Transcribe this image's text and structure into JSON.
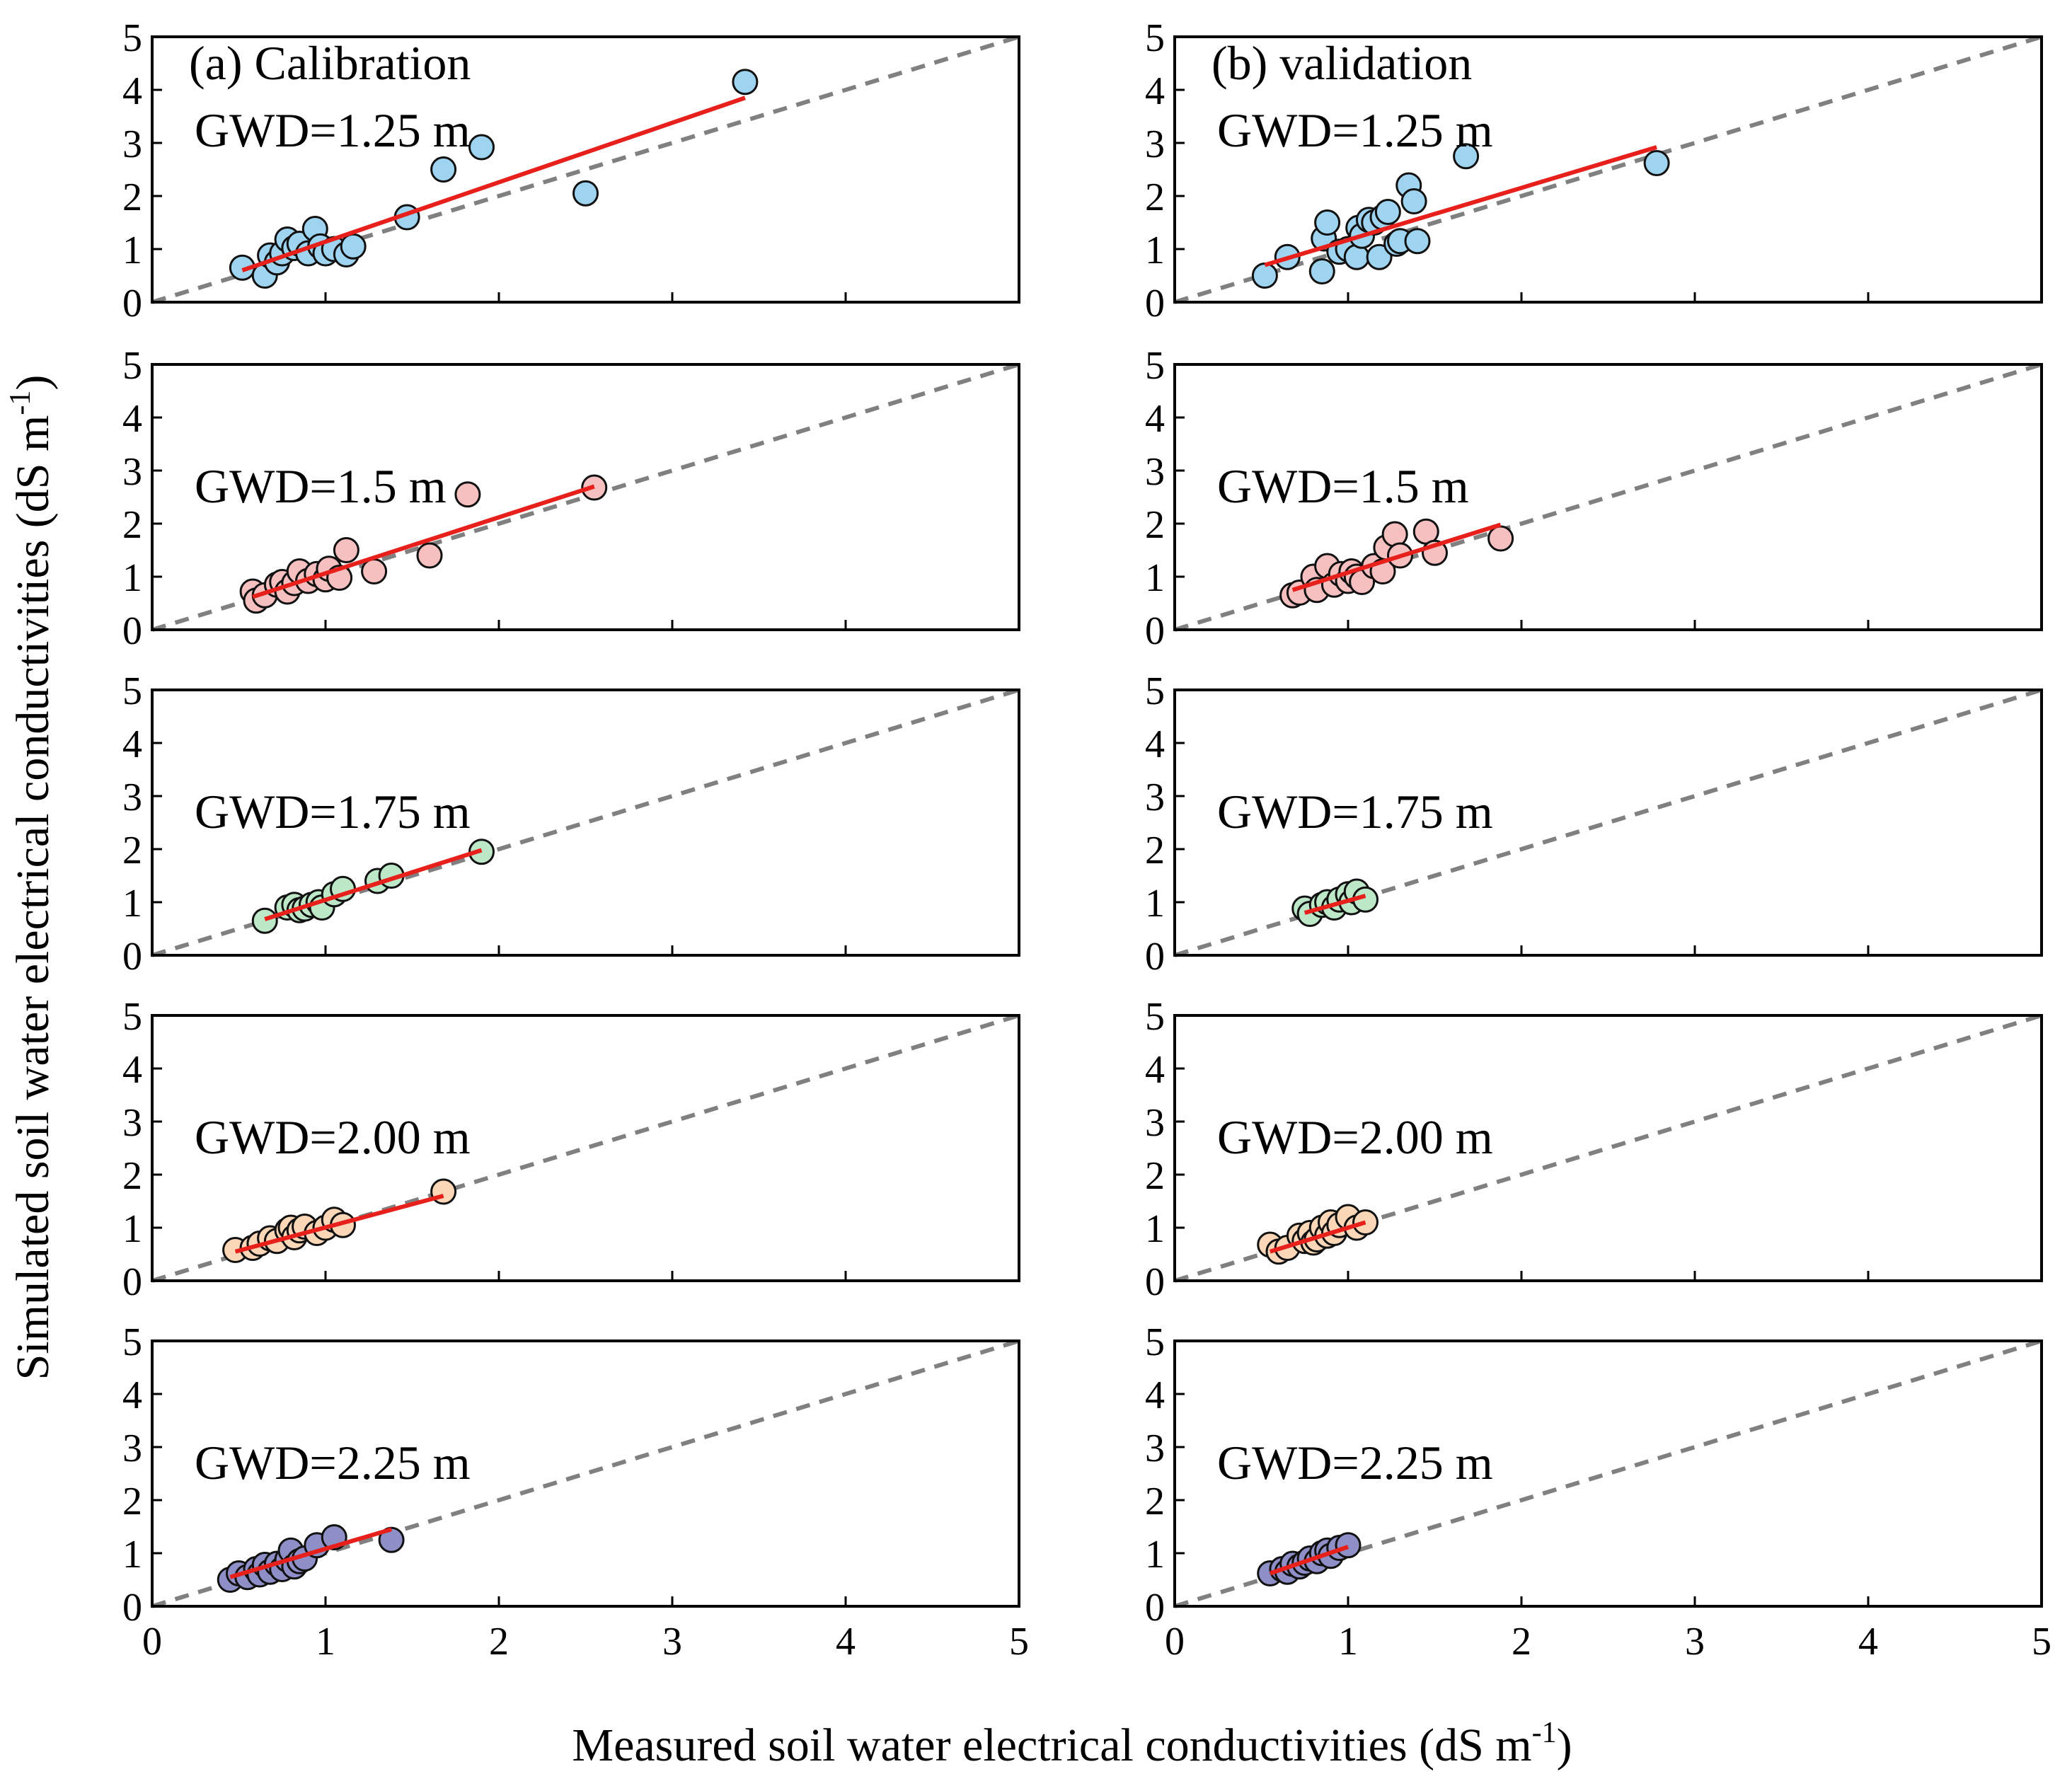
{
  "figure": {
    "ylabel": "Simulated soil water electrical conductivities (dS m",
    "ylabel_sup": "-1",
    "ylabel_end": ")",
    "xlabel": "Measured soil water electrical conductivities (dS m",
    "xlabel_sup": "-1",
    "xlabel_end": ")",
    "ticks": [
      "0",
      "1",
      "2",
      "3",
      "4",
      "5"
    ],
    "colors": {
      "gwd_1_25": "#9fd4f0",
      "gwd_1_5": "#f7c0c0",
      "gwd_1_75": "#bde8c8",
      "gwd_2_00": "#fbd7b8",
      "gwd_2_25": "#8f8fc8",
      "fit_line": "#e8201c",
      "one_to_one": "#808080"
    }
  },
  "columns": [
    {
      "title": "(a) Calibration"
    },
    {
      "title": "(b) validation"
    }
  ],
  "chart_data": [
    {
      "type": "scatter",
      "column": "(a) Calibration",
      "label": "GWD=1.25 m",
      "color_key": "gwd_1_25",
      "xlim": [
        0,
        5
      ],
      "ylim": [
        0,
        5
      ],
      "x": [
        0.52,
        0.65,
        0.68,
        0.72,
        0.75,
        0.78,
        0.82,
        0.85,
        0.9,
        0.94,
        0.97,
        1.0,
        1.05,
        1.12,
        1.16,
        1.47,
        1.68,
        1.9,
        2.5,
        3.42
      ],
      "y": [
        0.65,
        0.5,
        0.88,
        0.75,
        0.92,
        1.18,
        1.02,
        1.1,
        0.92,
        1.38,
        1.05,
        0.92,
        1.0,
        0.9,
        1.05,
        1.6,
        2.5,
        2.92,
        2.05,
        4.15
      ],
      "fit": {
        "x": [
          0.52,
          3.42
        ],
        "y": [
          0.6,
          3.85
        ]
      }
    },
    {
      "type": "scatter",
      "column": "(b) validation",
      "label": "GWD=1.25 m",
      "color_key": "gwd_1_25",
      "xlim": [
        0,
        5
      ],
      "ylim": [
        0,
        5
      ],
      "x": [
        0.52,
        0.65,
        0.85,
        0.86,
        0.88,
        0.95,
        1.0,
        1.05,
        1.06,
        1.08,
        1.12,
        1.15,
        1.18,
        1.2,
        1.23,
        1.28,
        1.3,
        1.35,
        1.38,
        1.4,
        1.68,
        2.78
      ],
      "y": [
        0.5,
        0.85,
        0.58,
        1.2,
        1.5,
        0.95,
        1.0,
        0.85,
        1.4,
        1.25,
        1.55,
        1.5,
        0.85,
        1.6,
        1.7,
        1.1,
        1.15,
        2.2,
        1.9,
        1.15,
        2.75,
        2.62
      ],
      "fit": {
        "x": [
          0.52,
          2.78
        ],
        "y": [
          0.7,
          2.92
        ]
      }
    },
    {
      "type": "scatter",
      "column": "(a) Calibration",
      "label": "GWD=1.5 m",
      "color_key": "gwd_1_5",
      "xlim": [
        0,
        5
      ],
      "ylim": [
        0,
        5
      ],
      "x": [
        0.58,
        0.6,
        0.65,
        0.72,
        0.75,
        0.78,
        0.82,
        0.85,
        0.9,
        0.95,
        1.0,
        1.02,
        1.08,
        1.12,
        1.28,
        1.6,
        1.82,
        2.55
      ],
      "y": [
        0.72,
        0.55,
        0.65,
        0.85,
        0.9,
        0.72,
        0.88,
        1.1,
        0.92,
        1.05,
        0.95,
        1.15,
        0.98,
        1.5,
        1.1,
        1.4,
        2.55,
        2.68
      ],
      "fit": {
        "x": [
          0.58,
          2.55
        ],
        "y": [
          0.62,
          2.7
        ]
      }
    },
    {
      "type": "scatter",
      "column": "(b) validation",
      "label": "GWD=1.5 m",
      "color_key": "gwd_1_5",
      "xlim": [
        0,
        5
      ],
      "ylim": [
        0,
        5
      ],
      "x": [
        0.68,
        0.72,
        0.8,
        0.82,
        0.88,
        0.92,
        0.96,
        1.0,
        1.02,
        1.05,
        1.08,
        1.15,
        1.2,
        1.22,
        1.27,
        1.3,
        1.45,
        1.5,
        1.88
      ],
      "y": [
        0.65,
        0.7,
        1.0,
        0.75,
        1.2,
        0.85,
        1.05,
        0.92,
        1.1,
        1.0,
        0.9,
        1.2,
        1.1,
        1.55,
        1.8,
        1.4,
        1.85,
        1.45,
        1.72
      ],
      "fit": {
        "x": [
          0.68,
          1.88
        ],
        "y": [
          0.75,
          1.98
        ]
      }
    },
    {
      "type": "scatter",
      "column": "(a) Calibration",
      "label": "GWD=1.75 m",
      "color_key": "gwd_1_75",
      "xlim": [
        0,
        5
      ],
      "ylim": [
        0,
        5
      ],
      "x": [
        0.65,
        0.78,
        0.82,
        0.85,
        0.88,
        0.92,
        0.96,
        0.98,
        1.05,
        1.1,
        1.3,
        1.38,
        1.9
      ],
      "y": [
        0.65,
        0.9,
        0.95,
        0.85,
        0.88,
        0.95,
        1.0,
        0.9,
        1.15,
        1.25,
        1.4,
        1.5,
        1.95
      ],
      "fit": {
        "x": [
          0.65,
          1.9
        ],
        "y": [
          0.68,
          1.98
        ]
      }
    },
    {
      "type": "scatter",
      "column": "(b) validation",
      "label": "GWD=1.75 m",
      "color_key": "gwd_1_75",
      "xlim": [
        0,
        5
      ],
      "ylim": [
        0,
        5
      ],
      "x": [
        0.75,
        0.78,
        0.85,
        0.88,
        0.92,
        0.95,
        1.0,
        1.02,
        1.05,
        1.1
      ],
      "y": [
        0.88,
        0.78,
        0.95,
        1.0,
        0.9,
        1.05,
        1.15,
        1.0,
        1.2,
        1.05
      ],
      "fit": {
        "x": [
          0.75,
          1.1
        ],
        "y": [
          0.8,
          1.12
        ]
      }
    },
    {
      "type": "scatter",
      "column": "(a) Calibration",
      "label": "GWD=2.00 m",
      "color_key": "gwd_2_00",
      "xlim": [
        0,
        5
      ],
      "ylim": [
        0,
        5
      ],
      "x": [
        0.48,
        0.58,
        0.62,
        0.68,
        0.72,
        0.78,
        0.8,
        0.82,
        0.85,
        0.88,
        0.95,
        1.0,
        1.05,
        1.1,
        1.68
      ],
      "y": [
        0.58,
        0.62,
        0.7,
        0.8,
        0.75,
        0.95,
        1.0,
        0.82,
        0.95,
        1.02,
        0.9,
        1.0,
        1.15,
        1.05,
        1.68
      ],
      "fit": {
        "x": [
          0.48,
          1.68
        ],
        "y": [
          0.55,
          1.6
        ]
      }
    },
    {
      "type": "scatter",
      "column": "(b) validation",
      "label": "GWD=2.00 m",
      "color_key": "gwd_2_00",
      "xlim": [
        0,
        5
      ],
      "ylim": [
        0,
        5
      ],
      "x": [
        0.55,
        0.6,
        0.65,
        0.72,
        0.75,
        0.78,
        0.8,
        0.82,
        0.85,
        0.88,
        0.9,
        0.92,
        0.95,
        1.0,
        1.05,
        1.1
      ],
      "y": [
        0.68,
        0.55,
        0.62,
        0.85,
        0.75,
        0.9,
        0.72,
        0.78,
        1.0,
        0.85,
        1.1,
        0.9,
        1.05,
        1.2,
        1.0,
        1.1
      ],
      "fit": {
        "x": [
          0.55,
          1.1
        ],
        "y": [
          0.55,
          1.1
        ]
      }
    },
    {
      "type": "scatter",
      "column": "(a) Calibration",
      "label": "GWD=2.25 m",
      "color_key": "gwd_2_25",
      "xlim": [
        0,
        5
      ],
      "ylim": [
        0,
        5
      ],
      "x": [
        0.45,
        0.5,
        0.55,
        0.6,
        0.62,
        0.65,
        0.68,
        0.72,
        0.75,
        0.78,
        0.8,
        0.82,
        0.85,
        0.88,
        0.95,
        1.05,
        1.38
      ],
      "y": [
        0.5,
        0.62,
        0.55,
        0.7,
        0.6,
        0.78,
        0.65,
        0.8,
        0.7,
        0.88,
        1.05,
        0.75,
        0.85,
        0.9,
        1.15,
        1.3,
        1.25
      ],
      "fit": {
        "x": [
          0.45,
          1.38
        ],
        "y": [
          0.55,
          1.45
        ]
      }
    },
    {
      "type": "scatter",
      "column": "(b) validation",
      "label": "GWD=2.25 m",
      "color_key": "gwd_2_25",
      "xlim": [
        0,
        5
      ],
      "ylim": [
        0,
        5
      ],
      "x": [
        0.55,
        0.62,
        0.65,
        0.68,
        0.72,
        0.75,
        0.78,
        0.82,
        0.85,
        0.88,
        0.9,
        0.95,
        1.0
      ],
      "y": [
        0.62,
        0.7,
        0.65,
        0.8,
        0.75,
        0.82,
        0.9,
        0.85,
        1.0,
        1.05,
        0.95,
        1.1,
        1.15
      ],
      "fit": {
        "x": [
          0.55,
          1.0
        ],
        "y": [
          0.62,
          1.12
        ]
      }
    }
  ]
}
